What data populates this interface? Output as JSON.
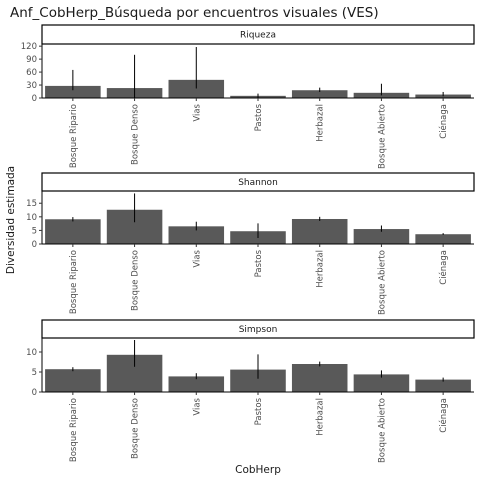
{
  "chart_data": {
    "type": "bar",
    "title": "Anf_CobHerp_Búsqueda por encuentros visuales (VES)",
    "xlabel": "CobHerp",
    "ylabel": "Diversidad estimada",
    "categories": [
      "Bosque Ripario",
      "Bosque Denso",
      "Vias",
      "Pastos",
      "Herbazal",
      "Bosque Abierto",
      "Ciénaga"
    ],
    "bar_color": "#595959",
    "error_color": "#000000",
    "grid": false,
    "panels": [
      {
        "name": "Riqueza",
        "ylim": [
          0,
          125
        ],
        "yticks": [
          0,
          30,
          60,
          90,
          120
        ],
        "values": [
          28,
          23,
          42,
          5,
          18,
          12,
          8
        ],
        "error_low": [
          18,
          0,
          22,
          0,
          14,
          6,
          4
        ],
        "error_high": [
          65,
          100,
          118,
          10,
          24,
          33,
          14
        ]
      },
      {
        "name": "Shannon",
        "ylim": [
          0,
          19.5
        ],
        "yticks": [
          0,
          5,
          10,
          15
        ],
        "values": [
          9.1,
          12.6,
          6.5,
          4.7,
          9.2,
          5.5,
          3.6
        ],
        "error_low": [
          8.3,
          8.0,
          5.0,
          2.2,
          8.5,
          4.5,
          3.3
        ],
        "error_high": [
          9.9,
          18.6,
          8.2,
          7.6,
          10.0,
          6.8,
          4.0
        ]
      },
      {
        "name": "Simpson",
        "ylim": [
          0,
          13.5
        ],
        "yticks": [
          0,
          5,
          10
        ],
        "values": [
          5.7,
          9.3,
          3.9,
          5.6,
          7.0,
          4.4,
          3.1
        ],
        "error_low": [
          5.2,
          6.3,
          3.2,
          3.3,
          6.4,
          3.6,
          2.6
        ],
        "error_high": [
          6.2,
          13.0,
          4.7,
          9.4,
          7.6,
          5.4,
          3.6
        ]
      }
    ]
  }
}
